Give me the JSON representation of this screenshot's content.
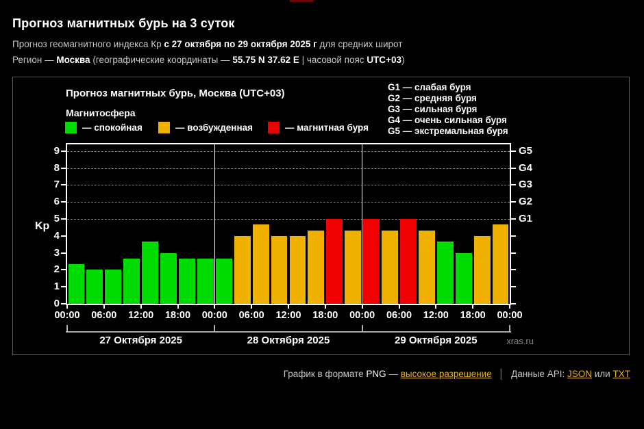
{
  "header": {
    "title": "Прогноз магнитных бурь на 3 суток",
    "line1": {
      "prefix": "Прогноз геомагнитного индекса Кр ",
      "bold": "с 27 октября по 29 октября 2025 г",
      "suffix": " для средних широт"
    },
    "line2": {
      "prefix": "Регион — ",
      "region": "Москва",
      "mid": " (географические координаты — ",
      "coords": "55.75 N 37.62 E",
      "mid2": " | часовой пояс ",
      "tz": "UTC+03",
      "close": ")"
    }
  },
  "chart": {
    "title": "Прогноз магнитных бурь, Москва (UTC+03)",
    "magnetosphere_label": "Магнитосфера",
    "legend": [
      {
        "state": "quiet",
        "label": "— спокойная",
        "color": "#00DC00"
      },
      {
        "state": "excited",
        "label": "— возбужденная",
        "color": "#F0B000"
      },
      {
        "state": "storm",
        "label": "— магнитная буря",
        "color": "#F00000"
      }
    ],
    "g_legend": [
      "G1 — слабая буря",
      "G2 — средняя буря",
      "G3 — сильная буря",
      "G4 — очень сильная буря",
      "G5 — экстремальная буря"
    ],
    "watermark": "xras.ru"
  },
  "chart_data": {
    "type": "bar",
    "title": "Прогноз магнитных бурь, Москва (UTC+03)",
    "ylabel": "Kp",
    "ylim": [
      0,
      9.4
    ],
    "yticks": [
      0,
      1,
      2,
      3,
      4,
      5,
      6,
      7,
      8,
      9
    ],
    "gridlines_at": [
      5,
      6,
      7,
      8,
      9
    ],
    "right_axis": [
      {
        "kp": 5,
        "label": "G1"
      },
      {
        "kp": 6,
        "label": "G2"
      },
      {
        "kp": 7,
        "label": "G3"
      },
      {
        "kp": 8,
        "label": "G4"
      },
      {
        "kp": 9,
        "label": "G5"
      }
    ],
    "time_labels": [
      "00:00",
      "06:00",
      "12:00",
      "18:00",
      "00:00",
      "06:00",
      "12:00",
      "18:00",
      "00:00",
      "06:00",
      "12:00",
      "18:00",
      "00:00"
    ],
    "state_colors": {
      "quiet": "#00DC00",
      "excited": "#F0B000",
      "storm": "#F00000"
    },
    "days": [
      {
        "label": "27 Октября 2025",
        "bars": [
          {
            "kp": 2.33,
            "state": "quiet"
          },
          {
            "kp": 2.0,
            "state": "quiet"
          },
          {
            "kp": 2.0,
            "state": "quiet"
          },
          {
            "kp": 2.67,
            "state": "quiet"
          },
          {
            "kp": 3.67,
            "state": "quiet"
          },
          {
            "kp": 3.0,
            "state": "quiet"
          },
          {
            "kp": 2.67,
            "state": "quiet"
          },
          {
            "kp": 2.67,
            "state": "quiet"
          }
        ]
      },
      {
        "label": "28 Октября 2025",
        "bars": [
          {
            "kp": 2.67,
            "state": "quiet"
          },
          {
            "kp": 4.0,
            "state": "excited"
          },
          {
            "kp": 4.67,
            "state": "excited"
          },
          {
            "kp": 4.0,
            "state": "excited"
          },
          {
            "kp": 4.0,
            "state": "excited"
          },
          {
            "kp": 4.33,
            "state": "excited"
          },
          {
            "kp": 5.0,
            "state": "storm"
          },
          {
            "kp": 4.33,
            "state": "excited"
          }
        ]
      },
      {
        "label": "29 Октября 2025",
        "bars": [
          {
            "kp": 5.0,
            "state": "storm"
          },
          {
            "kp": 4.33,
            "state": "excited"
          },
          {
            "kp": 5.0,
            "state": "storm"
          },
          {
            "kp": 4.33,
            "state": "excited"
          },
          {
            "kp": 3.67,
            "state": "quiet"
          },
          {
            "kp": 3.0,
            "state": "quiet"
          },
          {
            "kp": 4.0,
            "state": "excited"
          },
          {
            "kp": 4.67,
            "state": "excited"
          }
        ]
      }
    ]
  },
  "footer": {
    "png_prefix": "График в формате",
    "png": "PNG",
    "dash": "—",
    "hires_link": "высокое разрешение",
    "divider": "│",
    "api_label": "Данные API:",
    "json_link": "JSON",
    "or": "или",
    "txt_link": "TXT"
  }
}
